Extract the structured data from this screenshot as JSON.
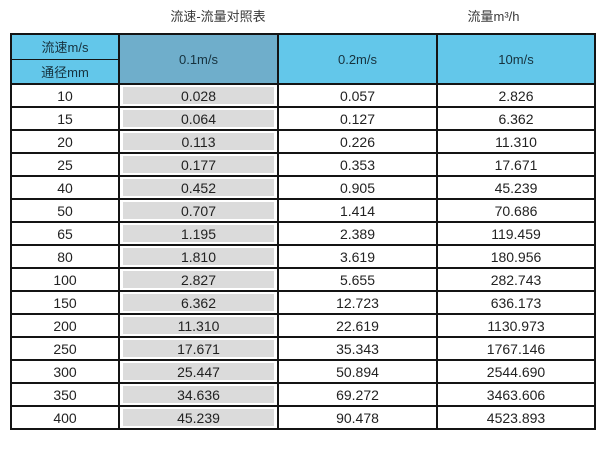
{
  "titles": {
    "main": "流速-流量对照表",
    "unit": "流量m³/h"
  },
  "table": {
    "corner_top": "流速m/s",
    "corner_bottom": "通径mm",
    "columns": [
      "0.1m/s",
      "0.2m/s",
      "10m/s"
    ],
    "rows": [
      [
        "10",
        "0.028",
        "0.057",
        "2.826"
      ],
      [
        "15",
        "0.064",
        "0.127",
        "6.362"
      ],
      [
        "20",
        "0.113",
        "0.226",
        "11.310"
      ],
      [
        "25",
        "0.177",
        "0.353",
        "17.671"
      ],
      [
        "40",
        "0.452",
        "0.905",
        "45.239"
      ],
      [
        "50",
        "0.707",
        "1.414",
        "70.686"
      ],
      [
        "65",
        "1.195",
        "2.389",
        "119.459"
      ],
      [
        "80",
        "1.810",
        "3.619",
        "180.956"
      ],
      [
        "100",
        "2.827",
        "5.655",
        "282.743"
      ],
      [
        "150",
        "6.362",
        "12.723",
        "636.173"
      ],
      [
        "200",
        "11.310",
        "22.619",
        "1130.973"
      ],
      [
        "250",
        "17.671",
        "35.343",
        "1767.146"
      ],
      [
        "300",
        "25.447",
        "50.894",
        "2544.690"
      ],
      [
        "350",
        "34.636",
        "69.272",
        "3463.606"
      ],
      [
        "400",
        "45.239",
        "90.478",
        "4523.893"
      ]
    ]
  },
  "colors": {
    "header_blue": "#63C7EA",
    "header_blue_dark": "#6FAECB",
    "highlight_column_gray": "#DBDBDB",
    "border": "#141414",
    "background": "#FFFFFF"
  },
  "chart_data": {
    "type": "table",
    "title": "流速-流量对照表",
    "unit_label": "流量m³/h",
    "row_header_label": "通径mm",
    "column_header_label": "流速m/s",
    "categories": [
      10,
      15,
      20,
      25,
      40,
      50,
      65,
      80,
      100,
      150,
      200,
      250,
      300,
      350,
      400
    ],
    "series": [
      {
        "name": "0.1m/s",
        "values": [
          0.028,
          0.064,
          0.113,
          0.177,
          0.452,
          0.707,
          1.195,
          1.81,
          2.827,
          6.362,
          11.31,
          17.671,
          25.447,
          34.636,
          45.239
        ]
      },
      {
        "name": "0.2m/s",
        "values": [
          0.057,
          0.127,
          0.226,
          0.353,
          0.905,
          1.414,
          2.389,
          3.619,
          5.655,
          12.723,
          22.619,
          35.343,
          50.894,
          69.272,
          90.478
        ]
      },
      {
        "name": "10m/s",
        "values": [
          2.826,
          6.362,
          11.31,
          17.671,
          45.239,
          70.686,
          119.459,
          180.956,
          282.743,
          636.173,
          1130.973,
          1767.146,
          2544.69,
          3463.606,
          4523.893
        ]
      }
    ]
  }
}
